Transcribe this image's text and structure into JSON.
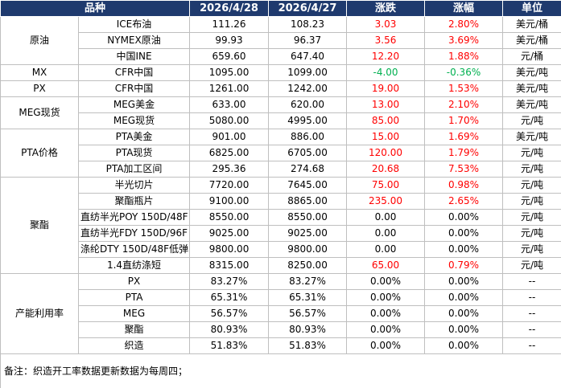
{
  "header": {
    "columns": [
      "品种",
      "2026/4/28",
      "2026/4/27",
      "涨跌",
      "涨幅",
      "单位"
    ]
  },
  "groups": [
    {
      "name": "原油",
      "rows": [
        [
          "ICE布油",
          "111.26",
          "108.23",
          "3.03",
          "2.80%",
          "美元/桶"
        ],
        [
          "NYMEX原油",
          "99.93",
          "96.37",
          "3.56",
          "3.69%",
          "美元/桶"
        ],
        [
          "中国INE",
          "659.60",
          "647.40",
          "12.20",
          "1.88%",
          "元/桶"
        ]
      ]
    },
    {
      "name": "MX",
      "rows": [
        [
          "CFR中国",
          "1095.00",
          "1099.00",
          "-4.00",
          "-0.36%",
          "美元/吨"
        ]
      ]
    },
    {
      "name": "PX",
      "rows": [
        [
          "CFR中国",
          "1261.00",
          "1242.00",
          "19.00",
          "1.53%",
          "美元/吨"
        ]
      ]
    },
    {
      "name": "MEG现货",
      "rows": [
        [
          "MEG美金",
          "633.00",
          "620.00",
          "13.00",
          "2.10%",
          "美元/吨"
        ],
        [
          "MEG现货",
          "5080.00",
          "4995.00",
          "85.00",
          "1.70%",
          "元/吨"
        ]
      ]
    },
    {
      "name": "PTA价格",
      "rows": [
        [
          "PTA美金",
          "901.00",
          "886.00",
          "15.00",
          "1.69%",
          "美元/吨"
        ],
        [
          "PTA现货",
          "6825.00",
          "6705.00",
          "120.00",
          "1.79%",
          "元/吨"
        ],
        [
          "PTA加工区间",
          "295.36",
          "274.68",
          "20.68",
          "7.53%",
          "元/吨"
        ]
      ]
    },
    {
      "name": "聚酯",
      "rows": [
        [
          "半光切片",
          "7720.00",
          "7645.00",
          "75.00",
          "0.98%",
          "元/吨"
        ],
        [
          "聚酯瓶片",
          "9100.00",
          "8865.00",
          "235.00",
          "2.65%",
          "元/吨"
        ],
        [
          "直纺半光POY 150D/48F",
          "8550.00",
          "8550.00",
          "0.00",
          "0.00%",
          "元/吨"
        ],
        [
          "直纺半光FDY 150D/96F",
          "9025.00",
          "9025.00",
          "0.00",
          "0.00%",
          "元/吨"
        ],
        [
          "涤纶DTY 150D/48F低弹",
          "9800.00",
          "9800.00",
          "0.00",
          "0.00%",
          "元/吨"
        ],
        [
          "1.4直纺涤短",
          "8315.00",
          "8250.00",
          "65.00",
          "0.79%",
          "元/吨"
        ]
      ]
    },
    {
      "name": "产能利用率",
      "rows": [
        [
          "PX",
          "83.27%",
          "83.27%",
          "0.00%",
          "0.00%",
          "--"
        ],
        [
          "PTA",
          "65.31%",
          "65.31%",
          "0.00%",
          "0.00%",
          "--"
        ],
        [
          "MEG",
          "56.57%",
          "56.57%",
          "0.00%",
          "0.00%",
          "--"
        ],
        [
          "聚酯",
          "80.93%",
          "80.93%",
          "0.00%",
          "0.00%",
          "--"
        ],
        [
          "织造",
          "51.83%",
          "51.83%",
          "0.00%",
          "0.00%",
          "--"
        ]
      ]
    }
  ],
  "note": "备注：织造开工率数据更新数据为每周四；"
}
